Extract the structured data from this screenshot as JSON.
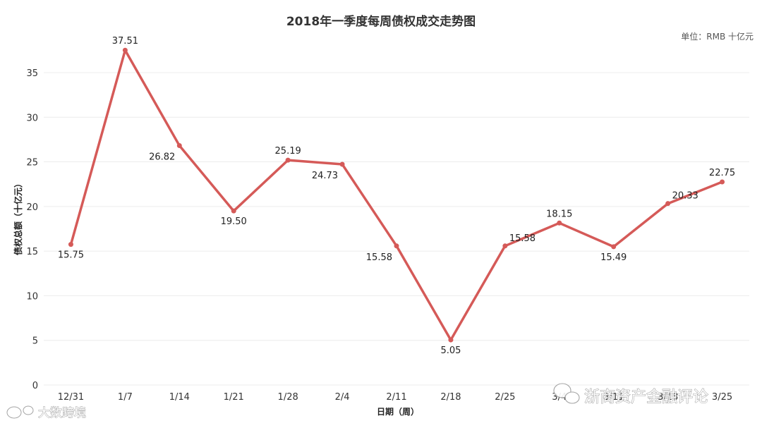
{
  "chart_data": {
    "type": "line",
    "title": "2018年一季度每周债权成交走势图",
    "unit": "单位：RMB 十亿元",
    "xlabel": "日期（周）",
    "ylabel": "债权总额（十亿元）",
    "ylim": [
      0,
      38
    ],
    "yticks": [
      0,
      5,
      10,
      15,
      20,
      25,
      30,
      35
    ],
    "grid": true,
    "categories": [
      "12/31",
      "1/7",
      "1/14",
      "1/21",
      "1/28",
      "2/4",
      "2/11",
      "2/18",
      "2/25",
      "3/4",
      "3/11",
      "3/18",
      "3/25"
    ],
    "values": [
      15.75,
      37.51,
      26.82,
      19.5,
      25.19,
      24.73,
      15.58,
      5.05,
      15.58,
      18.15,
      15.49,
      20.33,
      22.75
    ],
    "data_labels": [
      "15.75",
      "37.51",
      "26.82",
      "19.50",
      "25.19",
      "24.73",
      "15.58",
      "5.05",
      "15.58",
      "18.15",
      "15.49",
      "20.33",
      "22.75"
    ],
    "line_color": "#d55a58"
  },
  "watermarks": {
    "right": "浙商资产金融评论",
    "left": "大数跨境"
  }
}
